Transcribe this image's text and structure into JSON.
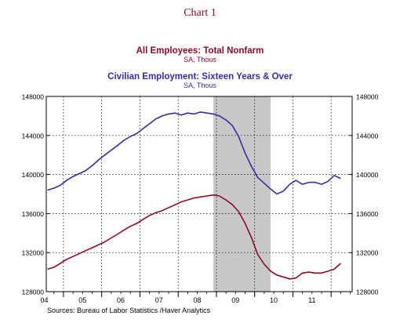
{
  "chart_data": {
    "type": "line",
    "chart_label": "Chart 1",
    "title": "",
    "xlabel": "",
    "ylabel": "",
    "ylim": [
      128000,
      148000
    ],
    "xlim": [
      2003.55,
      2011.55
    ],
    "grid": "dotted",
    "legend": "top-center",
    "x_ticks": [
      2004,
      2005,
      2006,
      2007,
      2008,
      2009,
      2010,
      2011
    ],
    "x_tick_labels": [
      "04",
      "05",
      "06",
      "07",
      "08",
      "09",
      "10",
      "11"
    ],
    "y_ticks": [
      128000,
      132000,
      136000,
      140000,
      144000,
      148000
    ],
    "y_tick_labels": [
      "128000",
      "132000",
      "136000",
      "140000",
      "144000",
      "148000"
    ],
    "recession_shading": {
      "start": 2007.917,
      "end": 2009.417,
      "color": "#c8c8c8"
    },
    "series": [
      {
        "name": "All Employees: Total Nonfarm",
        "units": "SA, Thous",
        "color": "#8b0a2a",
        "x": [
          2003.58,
          2003.75,
          2003.92,
          2004.08,
          2004.25,
          2004.42,
          2004.58,
          2004.75,
          2004.92,
          2005.08,
          2005.25,
          2005.42,
          2005.58,
          2005.75,
          2005.92,
          2006.08,
          2006.25,
          2006.42,
          2006.58,
          2006.75,
          2006.92,
          2007.08,
          2007.25,
          2007.42,
          2007.58,
          2007.75,
          2007.92,
          2008.08,
          2008.25,
          2008.42,
          2008.58,
          2008.75,
          2008.92,
          2009.08,
          2009.25,
          2009.42,
          2009.58,
          2009.75,
          2009.92,
          2010.08,
          2010.25,
          2010.42,
          2010.58,
          2010.75,
          2010.92,
          2011.08,
          2011.25
        ],
        "y": [
          130300,
          130500,
          130900,
          131300,
          131600,
          131900,
          132200,
          132500,
          132800,
          133100,
          133500,
          133900,
          134300,
          134700,
          135000,
          135400,
          135800,
          136100,
          136300,
          136600,
          136900,
          137200,
          137400,
          137600,
          137700,
          137800,
          137900,
          137800,
          137400,
          136900,
          136200,
          135000,
          133500,
          131800,
          130800,
          130100,
          129700,
          129500,
          129300,
          129400,
          129900,
          130000,
          129900,
          129900,
          130100,
          130300,
          130900
        ]
      },
      {
        "name": "Civilian Employment: Sixteen Years & Over",
        "units": "SA, Thous",
        "color": "#3a2a9e",
        "x": [
          2003.58,
          2003.75,
          2003.92,
          2004.08,
          2004.25,
          2004.42,
          2004.58,
          2004.75,
          2004.92,
          2005.08,
          2005.25,
          2005.42,
          2005.58,
          2005.75,
          2005.92,
          2006.08,
          2006.25,
          2006.42,
          2006.58,
          2006.75,
          2006.92,
          2007.08,
          2007.25,
          2007.42,
          2007.58,
          2007.75,
          2007.92,
          2008.08,
          2008.25,
          2008.42,
          2008.58,
          2008.75,
          2008.92,
          2009.08,
          2009.25,
          2009.42,
          2009.58,
          2009.75,
          2009.92,
          2010.08,
          2010.25,
          2010.42,
          2010.58,
          2010.75,
          2010.92,
          2011.08,
          2011.25
        ],
        "y": [
          138400,
          138600,
          138900,
          139400,
          139800,
          140100,
          140400,
          140900,
          141500,
          142000,
          142500,
          143000,
          143500,
          143900,
          144200,
          144700,
          145200,
          145700,
          146000,
          146200,
          146300,
          146100,
          146300,
          146200,
          146400,
          146300,
          146200,
          146000,
          145600,
          145000,
          143900,
          142200,
          140800,
          139700,
          139100,
          138500,
          138000,
          138300,
          139000,
          139400,
          139000,
          139200,
          139200,
          139000,
          139300,
          139900,
          139600
        ]
      }
    ],
    "source": "Sources:  Bureau of Labor Statistics /Haver Analytics"
  }
}
